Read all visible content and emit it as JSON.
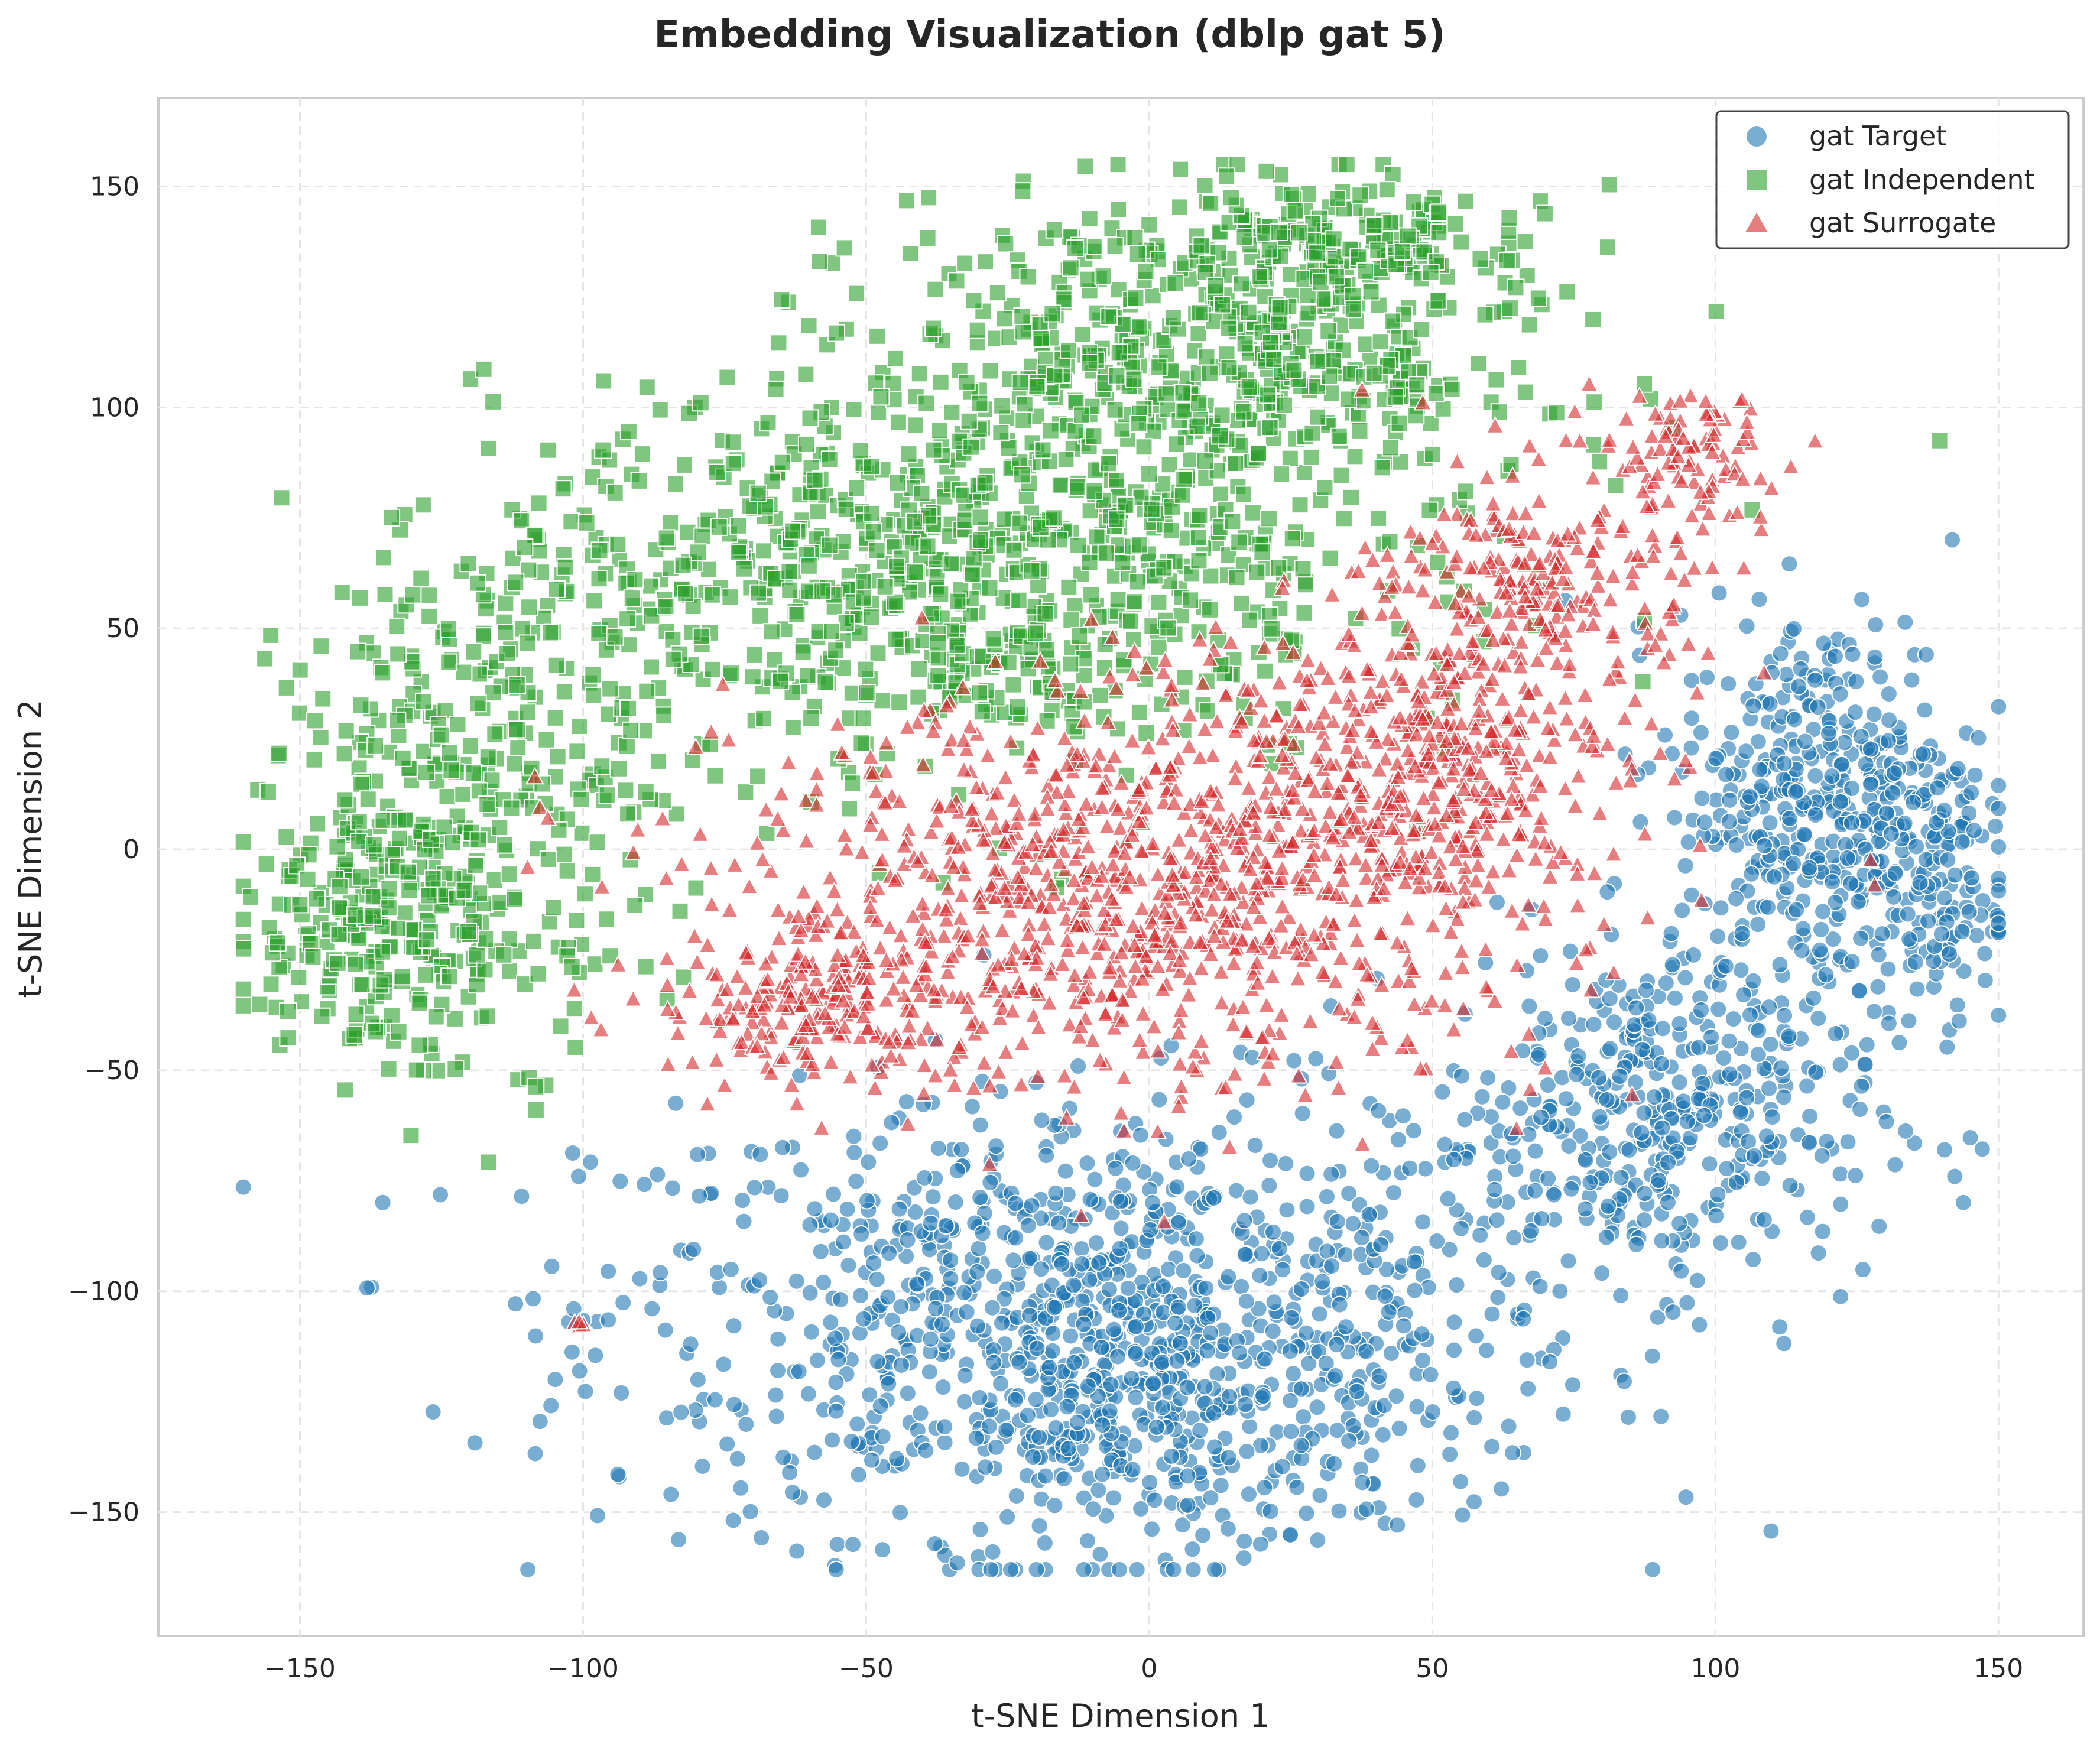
{
  "chart_data": {
    "type": "scatter",
    "title": "Embedding Visualization (dblp gat 5)",
    "xlabel": "t-SNE Dimension 1",
    "ylabel": "t-SNE Dimension 2",
    "xlim": [
      -175,
      165
    ],
    "ylim": [
      -178,
      170
    ],
    "xticks": [
      -150,
      -100,
      -50,
      0,
      50,
      100,
      150
    ],
    "yticks": [
      -150,
      -100,
      -50,
      0,
      50,
      100,
      150
    ],
    "xtick_labels": [
      "−150",
      "−100",
      "−50",
      "0",
      "50",
      "100",
      "150"
    ],
    "ytick_labels": [
      "−150",
      "−100",
      "−50",
      "0",
      "50",
      "100",
      "150"
    ],
    "grid": true,
    "legend_position": "top-right",
    "series": [
      {
        "name": "gat Target",
        "marker": "circle",
        "color": "#1f77b4",
        "cluster_regions": [
          {
            "cx": -10,
            "cy": -105,
            "rx": 80,
            "ry": 45,
            "n": 950
          },
          {
            "cx": 0,
            "cy": -130,
            "rx": 40,
            "ry": 30,
            "n": 250
          },
          {
            "cx": 90,
            "cy": -60,
            "rx": 35,
            "ry": 35,
            "n": 400
          },
          {
            "cx": 120,
            "cy": 10,
            "rx": 25,
            "ry": 40,
            "n": 450
          },
          {
            "cx": 140,
            "cy": -10,
            "rx": 10,
            "ry": 25,
            "n": 80
          },
          {
            "cx": -101,
            "cy": -108,
            "rx": 1,
            "ry": 1,
            "n": 0
          }
        ]
      },
      {
        "name": "gat Independent",
        "marker": "square",
        "color": "#2ca02c",
        "cluster_regions": [
          {
            "cx": -40,
            "cy": 60,
            "rx": 70,
            "ry": 40,
            "n": 800
          },
          {
            "cx": 10,
            "cy": 110,
            "rx": 55,
            "ry": 35,
            "n": 600
          },
          {
            "cx": -120,
            "cy": 10,
            "rx": 30,
            "ry": 50,
            "n": 350
          },
          {
            "cx": -140,
            "cy": -20,
            "rx": 20,
            "ry": 25,
            "n": 150
          },
          {
            "cx": 30,
            "cy": 135,
            "rx": 30,
            "ry": 12,
            "n": 150
          }
        ]
      },
      {
        "name": "gat Surrogate",
        "marker": "triangle",
        "color": "#d62728",
        "cluster_regions": [
          {
            "cx": 0,
            "cy": -10,
            "rx": 65,
            "ry": 40,
            "n": 1000
          },
          {
            "cx": 45,
            "cy": 20,
            "rx": 35,
            "ry": 30,
            "n": 400
          },
          {
            "cx": 70,
            "cy": 60,
            "rx": 25,
            "ry": 25,
            "n": 250
          },
          {
            "cx": -60,
            "cy": -35,
            "rx": 25,
            "ry": 15,
            "n": 200
          },
          {
            "cx": 95,
            "cy": 90,
            "rx": 15,
            "ry": 12,
            "n": 80
          },
          {
            "cx": -101,
            "cy": -108,
            "rx": 1,
            "ry": 1,
            "n": 4
          }
        ]
      }
    ]
  },
  "legend": {
    "items": [
      {
        "label": "gat Target",
        "marker": "circle",
        "color": "#1f77b4"
      },
      {
        "label": "gat Independent",
        "marker": "square",
        "color": "#2ca02c"
      },
      {
        "label": "gat Surrogate",
        "marker": "triangle",
        "color": "#d62728"
      }
    ]
  }
}
